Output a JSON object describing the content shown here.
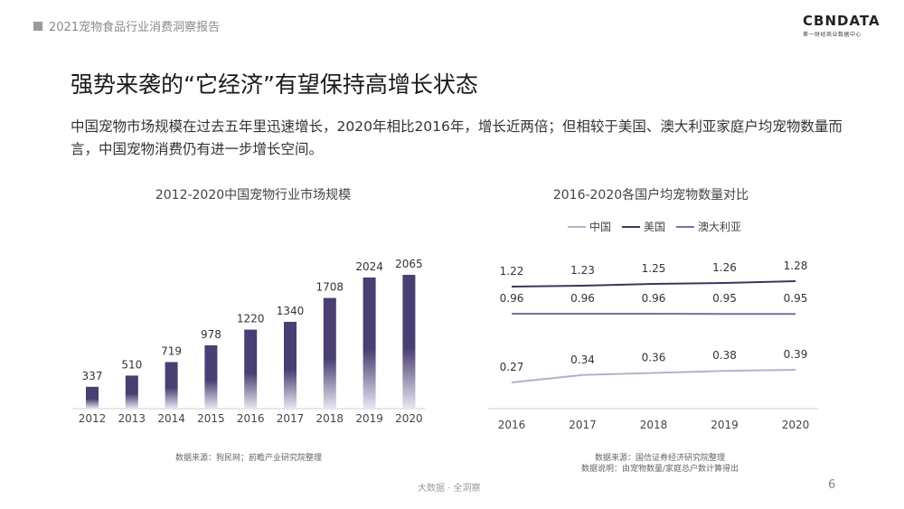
{
  "header": {
    "report_title": "2021宠物食品行业消费洞察报告"
  },
  "logo": {
    "main": "CBNDATA",
    "sub": "第一财经商业数据中心"
  },
  "slide": {
    "title": "强势来袭的“它经济”有望保持高增长状态",
    "paragraph": "中国宠物市场规模在过去五年里迅速增长，2020年相比2016年，增长近两倍；但相较于美国、澳大利亚家庭户均宠物数量而言，中国宠物消费仍有进一步增长空间。"
  },
  "chart_data": [
    {
      "type": "bar",
      "title": "2012-2020中国宠物行业市场规模",
      "categories": [
        "2012",
        "2013",
        "2014",
        "2015",
        "2016",
        "2017",
        "2018",
        "2019",
        "2020"
      ],
      "values": [
        337,
        510,
        719,
        978,
        1220,
        1340,
        1708,
        2024,
        2065
      ],
      "colors": {
        "bar_top": "#4a3f72",
        "bar_bottom": "#e9e6f2"
      },
      "source": "数据来源：狗民网；前瞻产业研究院整理"
    },
    {
      "type": "line",
      "title": "2016-2020各国户均宠物数量对比",
      "x": [
        "2016",
        "2017",
        "2018",
        "2019",
        "2020"
      ],
      "legend_position": "top",
      "series": [
        {
          "name": "中国",
          "values": [
            0.27,
            0.34,
            0.36,
            0.38,
            0.39
          ],
          "color": "#b5b1cc"
        },
        {
          "name": "美国",
          "values": [
            1.22,
            1.23,
            1.25,
            1.26,
            1.28
          ],
          "color": "#3d355e"
        },
        {
          "name": "澳大利亚",
          "values": [
            0.96,
            0.96,
            0.96,
            0.95,
            0.95
          ],
          "color": "#7a70a0"
        }
      ],
      "source_lines": [
        "数据来源：国信证券经济研究院整理",
        "数据说明：由宠物数量/家庭总户数计算得出"
      ]
    }
  ],
  "footer": {
    "left": "大数据 · 全洞察",
    "page": "6"
  }
}
